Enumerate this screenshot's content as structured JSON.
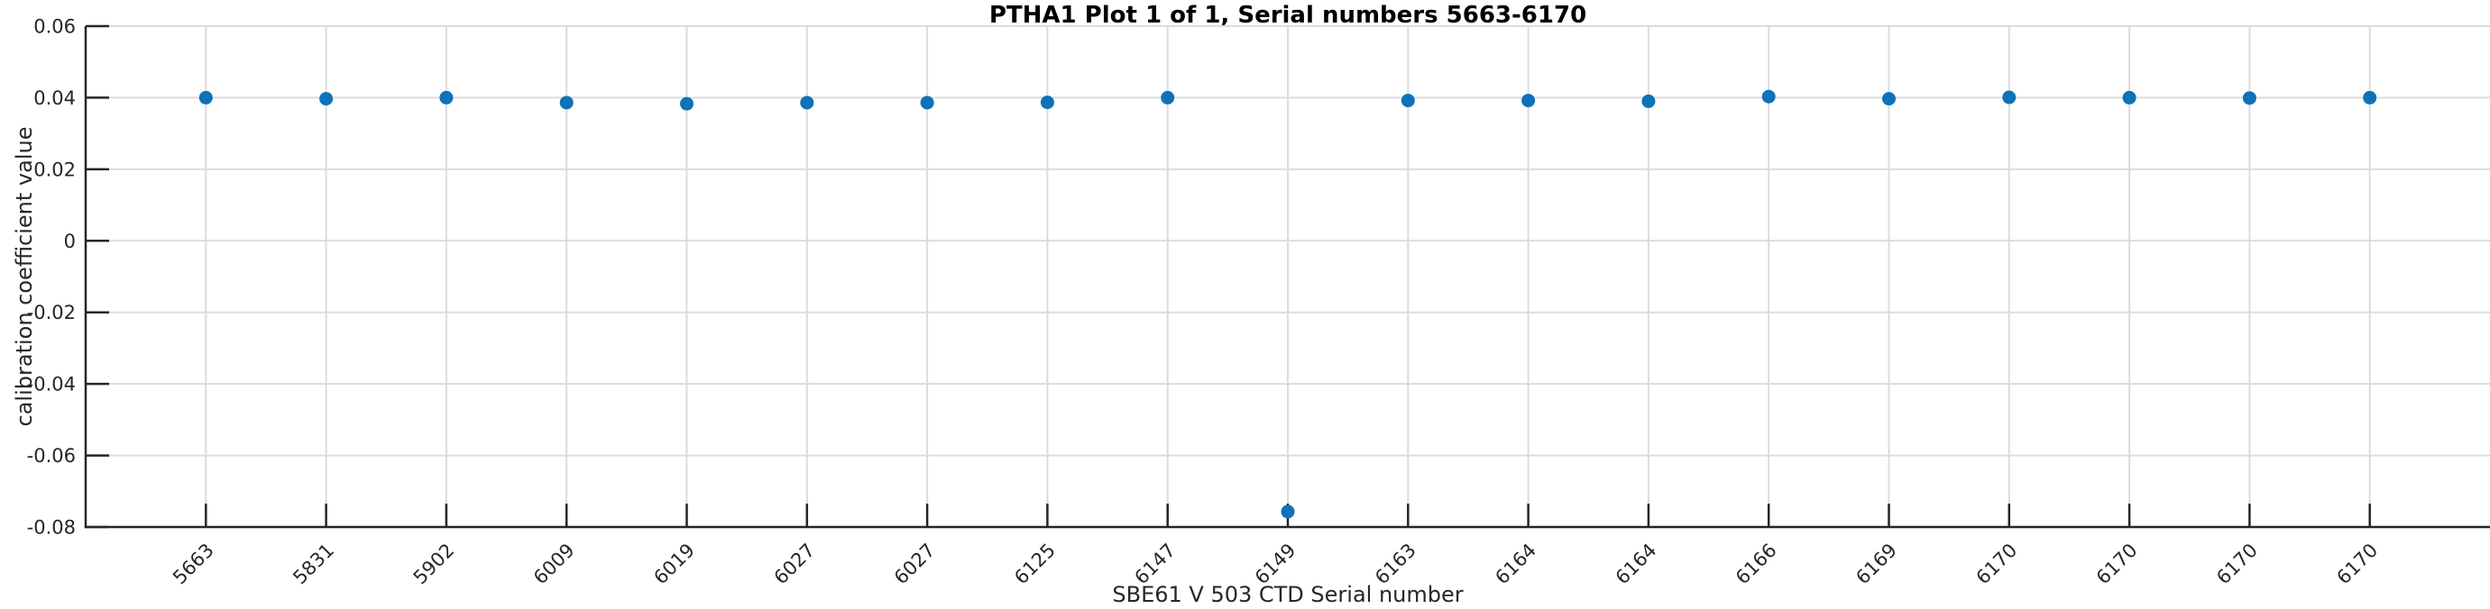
{
  "figure": {
    "title": "PTHA1 Plot 1 of 1, Serial numbers 5663-6170",
    "xlabel": "SBE61 V 503 CTD Serial number",
    "ylabel": "calibration coefficient value"
  },
  "chart_data": {
    "type": "scatter",
    "title": "PTHA1 Plot 1 of 1, Serial numbers 5663-6170",
    "xlabel": "SBE61 V 503 CTD Serial number",
    "ylabel": "calibration coefficient value",
    "categories": [
      "5663",
      "5831",
      "5902",
      "6009",
      "6019",
      "6027",
      "6027",
      "6125",
      "6147",
      "6149",
      "6163",
      "6164",
      "6164",
      "6166",
      "6169",
      "6170",
      "6170",
      "6170",
      "6170"
    ],
    "values": [
      0.04,
      0.0397,
      0.04,
      0.0386,
      0.0383,
      0.0386,
      0.0386,
      0.0387,
      0.04,
      -0.0757,
      0.0392,
      0.0392,
      0.039,
      0.0403,
      0.0397,
      0.0401,
      0.04,
      0.0399,
      0.04
    ],
    "ylim": [
      -0.08,
      0.06
    ],
    "yticks": [
      0.06,
      0.04,
      0.02,
      0,
      -0.02,
      -0.04,
      -0.06,
      -0.08
    ],
    "ytick_labels": [
      "0.06",
      "0.04",
      "0.02",
      "0",
      "-0.02",
      "-0.04",
      "-0.06",
      "-0.08"
    ],
    "grid": true,
    "legend": null,
    "x_tick_rotation_deg": 45,
    "marker": "circle",
    "colors": {
      "marker": "#0d72b9",
      "grid": "#dcdcdc",
      "axis": "#262626",
      "tick_text": "#262626",
      "title_text": "#000000",
      "background": "#ffffff"
    }
  }
}
